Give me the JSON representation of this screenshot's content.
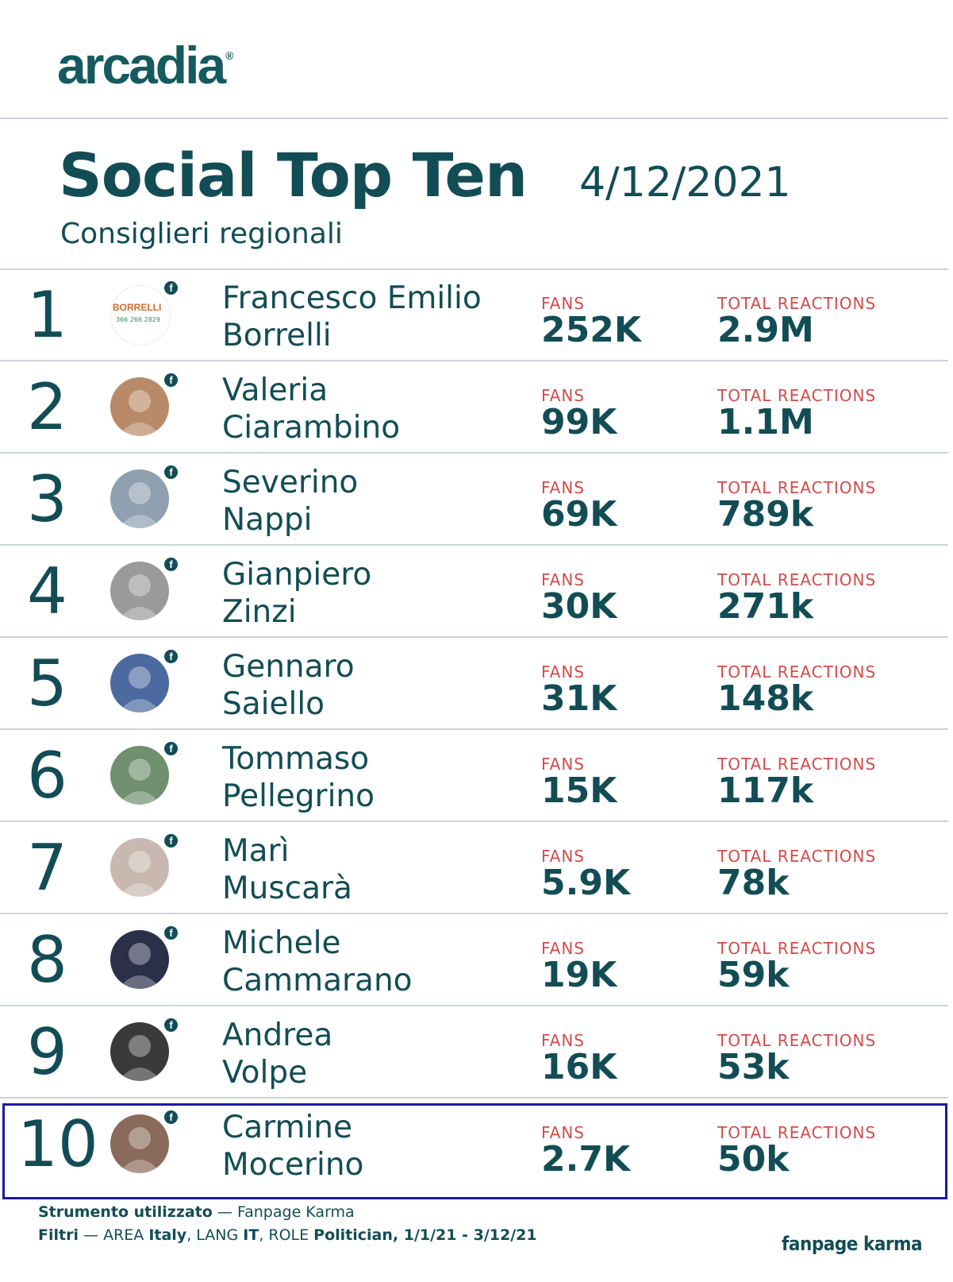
{
  "brand": {
    "name": "arcadia",
    "mark": "®"
  },
  "header": {
    "title": "Social Top Ten",
    "date": "4/12/2021",
    "subtitle": "Consiglieri regionali"
  },
  "labels": {
    "fans": "FANS",
    "reactions": "TOTAL REACTIONS",
    "fb_icon": "f"
  },
  "rows": [
    {
      "rank": "1",
      "name1": "Francesco Emilio",
      "name2": "Borrelli",
      "fans": "252K",
      "reactions": "2.9M",
      "avatar_text": "BORRELLI",
      "avatar_sub": "366 266 2829"
    },
    {
      "rank": "2",
      "name1": "Valeria",
      "name2": "Ciarambino",
      "fans": "99K",
      "reactions": "1.1M"
    },
    {
      "rank": "3",
      "name1": "Severino",
      "name2": "Nappi",
      "fans": "69K",
      "reactions": "789k"
    },
    {
      "rank": "4",
      "name1": "Gianpiero",
      "name2": "Zinzi",
      "fans": "30K",
      "reactions": "271k"
    },
    {
      "rank": "5",
      "name1": "Gennaro",
      "name2": "Saiello",
      "fans": "31K",
      "reactions": "148k"
    },
    {
      "rank": "6",
      "name1": "Tommaso",
      "name2": "Pellegrino",
      "fans": "15K",
      "reactions": "117k"
    },
    {
      "rank": "7",
      "name1": "Marì",
      "name2": "Muscarà",
      "fans": "5.9K",
      "reactions": "78k"
    },
    {
      "rank": "8",
      "name1": "Michele",
      "name2": "Cammarano",
      "fans": "19K",
      "reactions": "59k"
    },
    {
      "rank": "9",
      "name1": "Andrea",
      "name2": "Volpe",
      "fans": "16K",
      "reactions": "53k"
    },
    {
      "rank": "10",
      "name1": "Carmine",
      "name2": "Mocerino",
      "fans": "2.7K",
      "reactions": "50k"
    }
  ],
  "footer": {
    "tool_label": "Strumento utilizzato",
    "tool_value": " — Fanpage Karma",
    "filters_label": "Filtri",
    "filters_dash": " — AREA ",
    "area": "Italy",
    "lang_label": ", LANG ",
    "lang": "IT",
    "role_label": ", ROLE ",
    "role": "Politician, 1/1/21 - 3/12/21",
    "brand": "fanpage karma"
  },
  "colors": {
    "primary": "#124d55",
    "label_red": "#d54a4a",
    "highlight": "#1a1aa8"
  }
}
